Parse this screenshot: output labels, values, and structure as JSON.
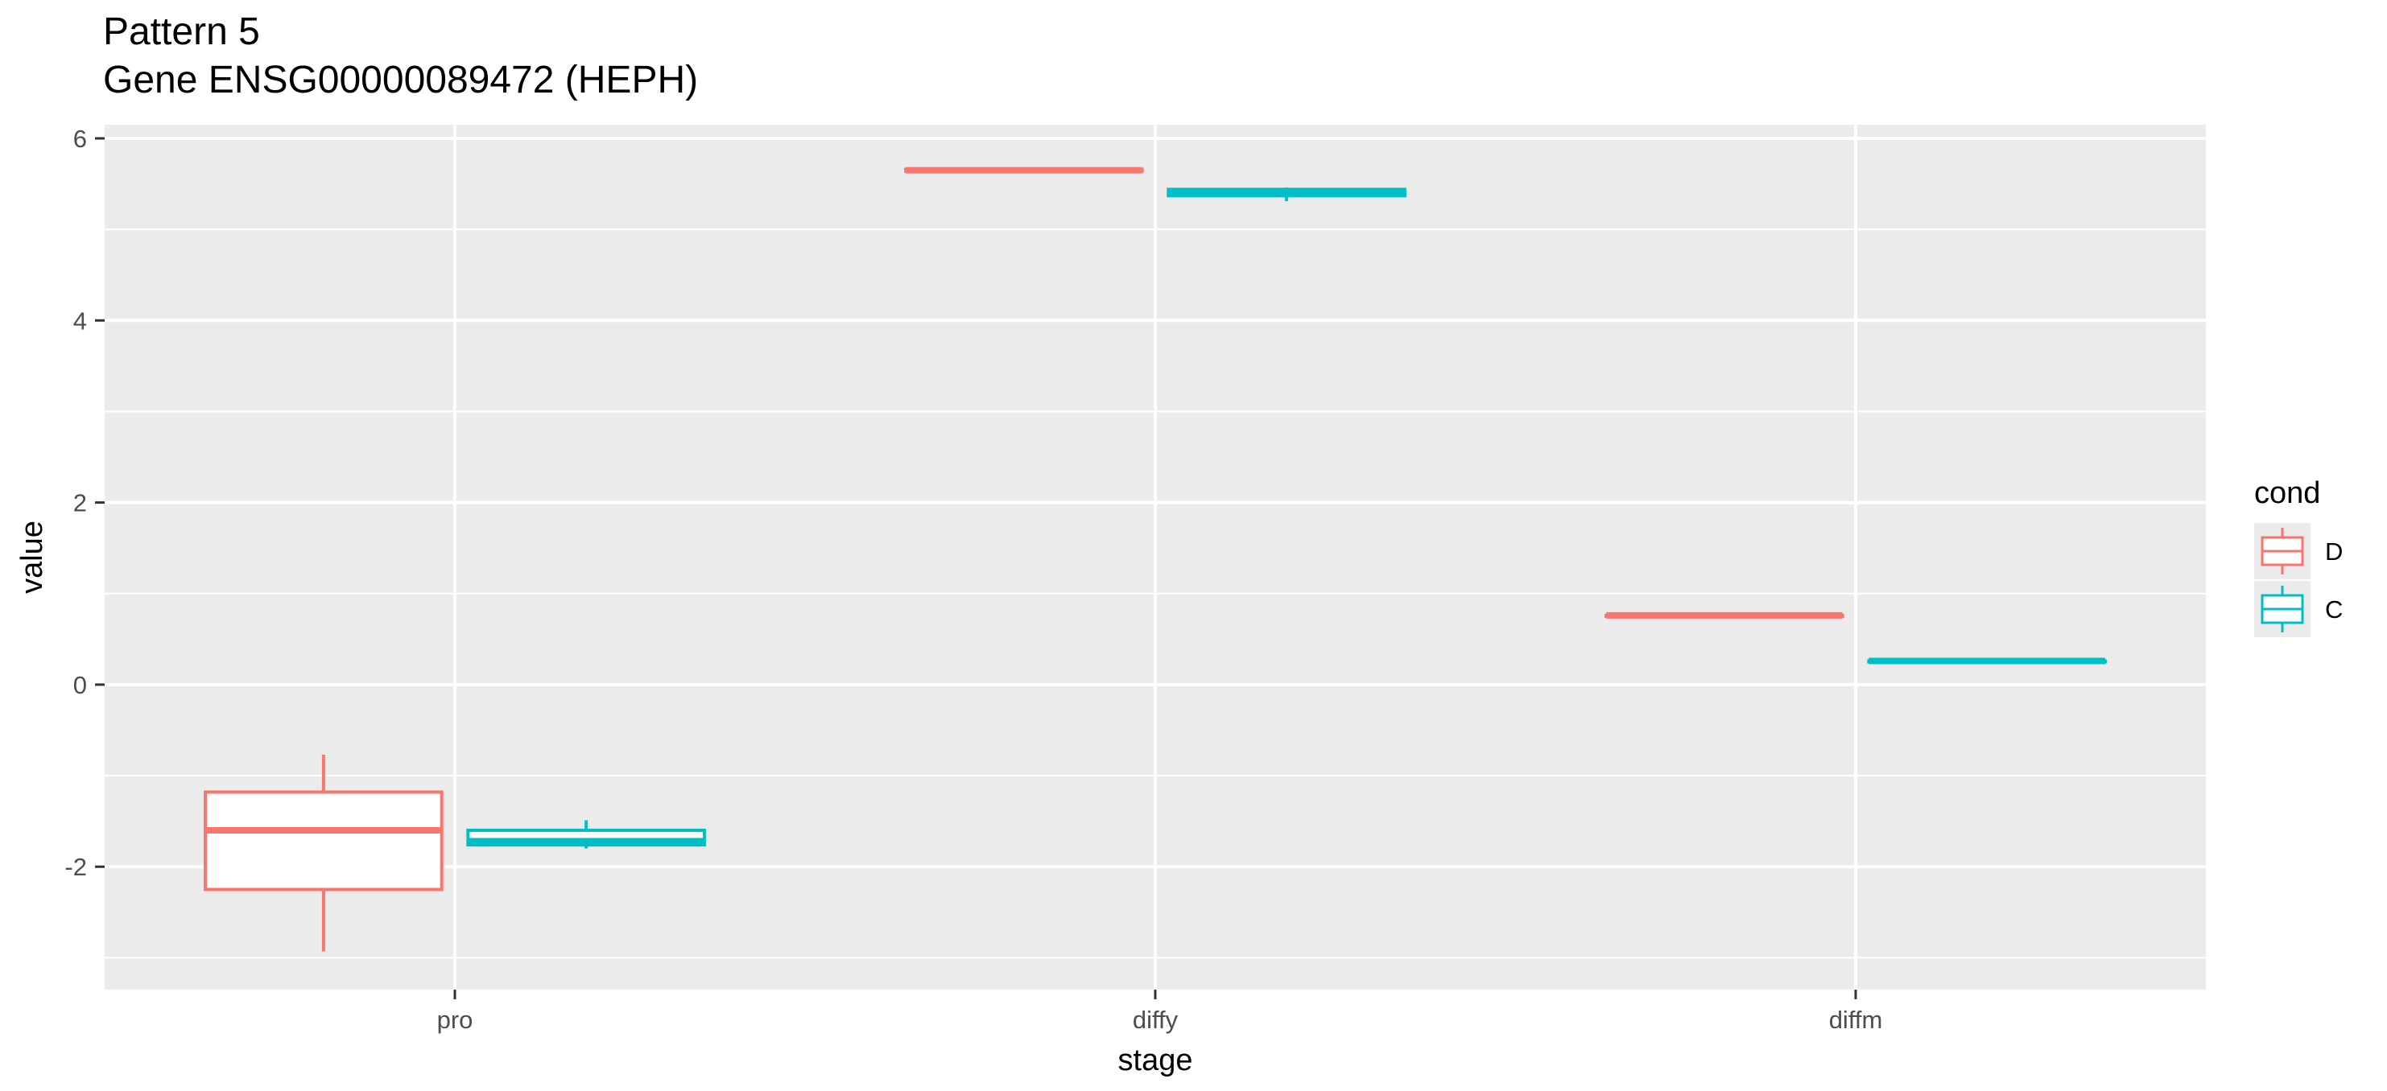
{
  "chart_data": {
    "type": "boxplot",
    "title": "Pattern 5",
    "subtitle": "Gene ENSG00000089472 (HEPH)",
    "xlabel": "stage",
    "ylabel": "value",
    "categories": [
      "pro",
      "diffy",
      "diffm"
    ],
    "ylim": [
      -3.35,
      6.15
    ],
    "yticks": [
      -2,
      0,
      2,
      4,
      6
    ],
    "grid": true,
    "legend": {
      "title": "cond",
      "position": "right",
      "entries": [
        "D",
        "C"
      ]
    },
    "series": [
      {
        "name": "D",
        "color": "#F8766D",
        "boxes": [
          {
            "category": "pro",
            "min": -2.93,
            "q1": -2.25,
            "median": -1.6,
            "q3": -1.18,
            "max": -0.77
          },
          {
            "category": "diffy",
            "min": 5.63,
            "q1": 5.64,
            "median": 5.65,
            "q3": 5.66,
            "max": 5.67
          },
          {
            "category": "diffm",
            "min": 0.74,
            "q1": 0.75,
            "median": 0.76,
            "q3": 0.76,
            "max": 0.77
          }
        ]
      },
      {
        "name": "C",
        "color": "#00BFC4",
        "boxes": [
          {
            "category": "pro",
            "min": -1.8,
            "q1": -1.76,
            "median": -1.72,
            "q3": -1.6,
            "max": -1.49
          },
          {
            "category": "diffy",
            "min": 5.31,
            "q1": 5.37,
            "median": 5.4,
            "q3": 5.44,
            "max": 5.46
          },
          {
            "category": "diffm",
            "min": 0.24,
            "q1": 0.25,
            "median": 0.26,
            "q3": 0.26,
            "max": 0.27
          }
        ]
      }
    ]
  }
}
